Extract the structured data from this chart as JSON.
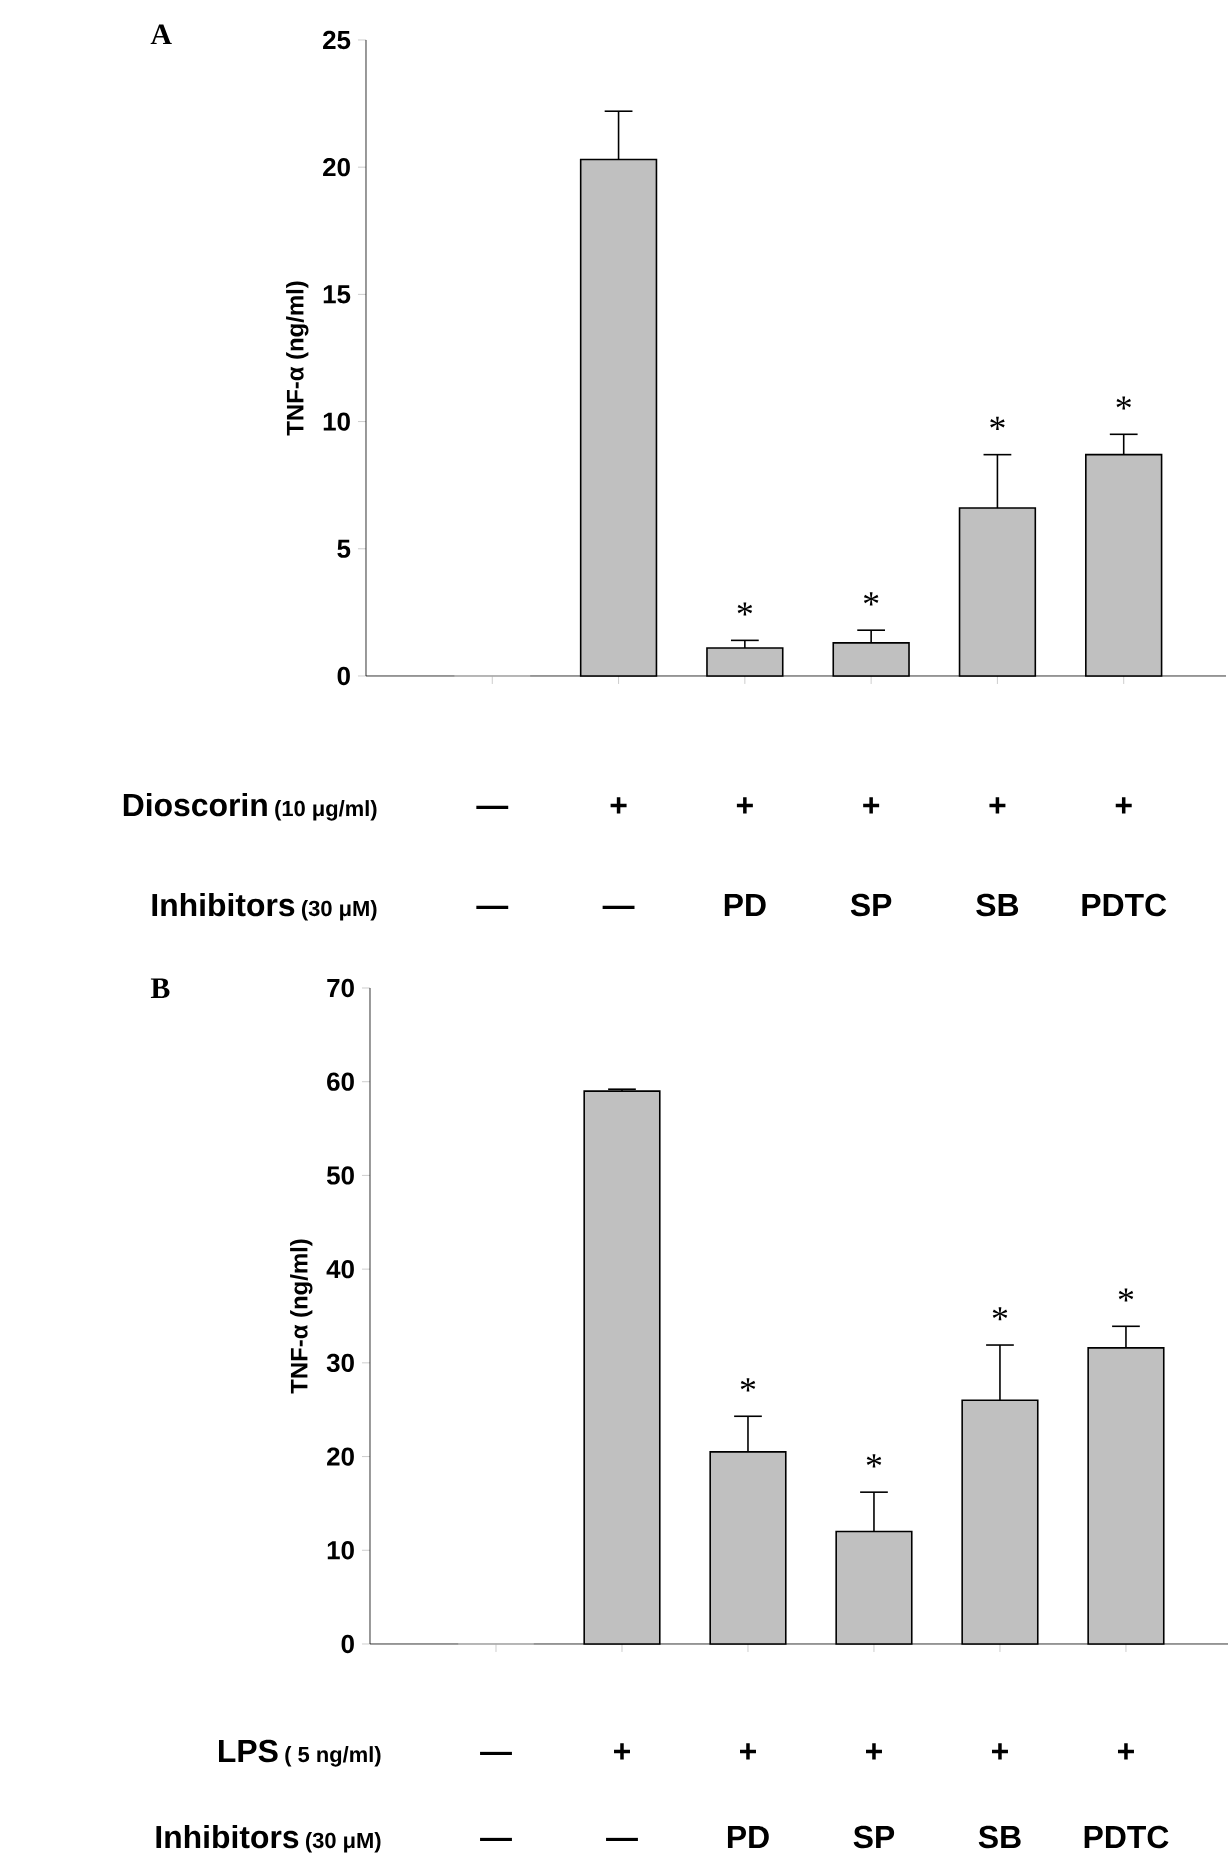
{
  "chart_data": [
    {
      "type": "bar",
      "title": "A",
      "ylabel": "TNF-α (ng/ml)",
      "categories": [
        null,
        null,
        null,
        null,
        null,
        null
      ],
      "values": [
        0,
        20.3,
        1.1,
        1.3,
        6.6,
        8.7
      ],
      "color": "#c0c0c0",
      "errors": [
        null,
        [
          20.3,
          22.2
        ],
        [
          1.1,
          1.4
        ],
        [
          1.3,
          1.8
        ],
        [
          6.6,
          8.7
        ],
        [
          8.7,
          9.5
        ]
      ],
      "value_labels": [
        null,
        null,
        "*",
        "*",
        "*",
        "*"
      ],
      "ylim": [
        0,
        25
      ],
      "yticks": [
        0,
        5,
        10,
        15,
        20,
        25
      ],
      "annotations": [
        "Dioscorin",
        "(10 μg/ml)",
        "—",
        "+",
        "+",
        "+",
        "+",
        "+",
        "Inhibitors",
        "(30 μM)",
        "—",
        "—",
        "PD",
        "SP",
        "SB",
        "PDTC"
      ]
    },
    {
      "type": "bar",
      "title": "B",
      "ylabel": "TNF-α (ng/ml)",
      "categories": [
        null,
        null,
        null,
        null,
        null,
        null
      ],
      "values": [
        0,
        59,
        20.5,
        12,
        26,
        31.6
      ],
      "color": "#c0c0c0",
      "errors": [
        null,
        [
          59,
          59.2
        ],
        [
          20.5,
          24.3
        ],
        [
          12,
          16.2
        ],
        [
          26,
          31.9
        ],
        [
          31.6,
          33.9
        ]
      ],
      "value_labels": [
        null,
        null,
        "*",
        "*",
        "*",
        "*"
      ],
      "ylim": [
        0,
        70
      ],
      "yticks": [
        0,
        10,
        20,
        30,
        40,
        50,
        60,
        70
      ],
      "annotations": [
        "LPS",
        "( 5 ng/ml)",
        "—",
        "+",
        "+",
        "+",
        "+",
        "+",
        "Inhibitors",
        "(30 μM)",
        "—",
        "—",
        "PD",
        "SP",
        "SB",
        "PDTC"
      ]
    }
  ]
}
